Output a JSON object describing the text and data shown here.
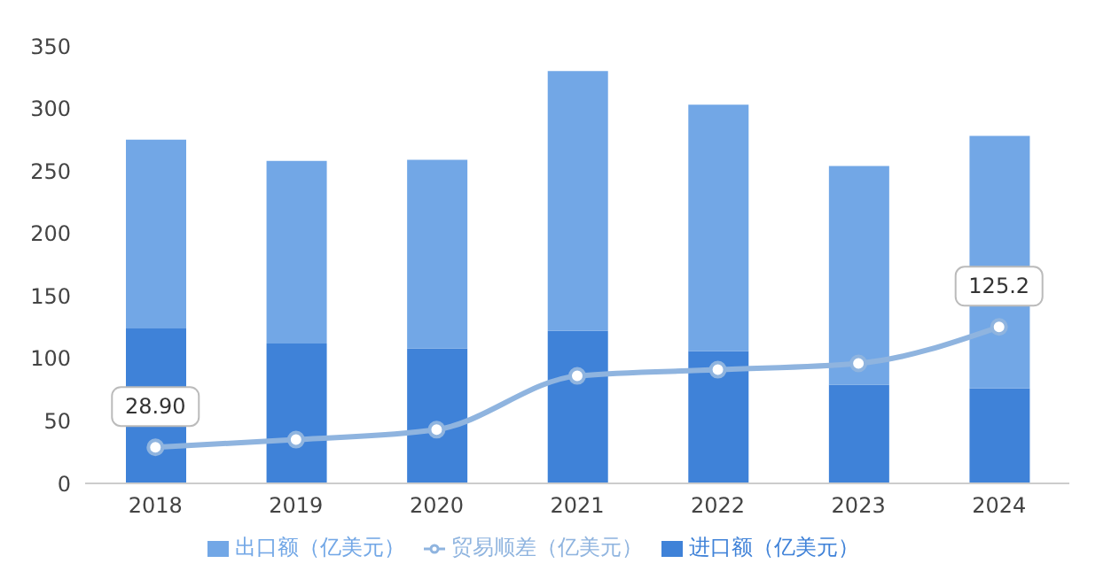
{
  "chart_data": {
    "type": "bar",
    "categories": [
      "2018",
      "2019",
      "2020",
      "2021",
      "2022",
      "2023",
      "2024"
    ],
    "stacked": true,
    "series": [
      {
        "name": "进口额（亿美元）",
        "color": "#3f82d8",
        "values": [
          124,
          112,
          108,
          122,
          106,
          79,
          76
        ]
      },
      {
        "name": "出口额（亿美元）",
        "color": "#72a7e6",
        "values": [
          151,
          146,
          151,
          208,
          197,
          175,
          202
        ]
      },
      {
        "name": "贸易顺差（亿美元）",
        "type": "line",
        "color": "#8fb4df",
        "values": [
          28.9,
          35,
          43,
          86,
          91,
          96,
          125.2
        ],
        "value_labels": [
          "28.90",
          null,
          null,
          null,
          null,
          null,
          "125.2"
        ],
        "marker": "circle"
      }
    ],
    "ylim": [
      0,
      350
    ],
    "yticks": [
      0,
      50,
      100,
      150,
      200,
      250,
      300,
      350
    ],
    "grid": false,
    "legend": "bottom"
  }
}
